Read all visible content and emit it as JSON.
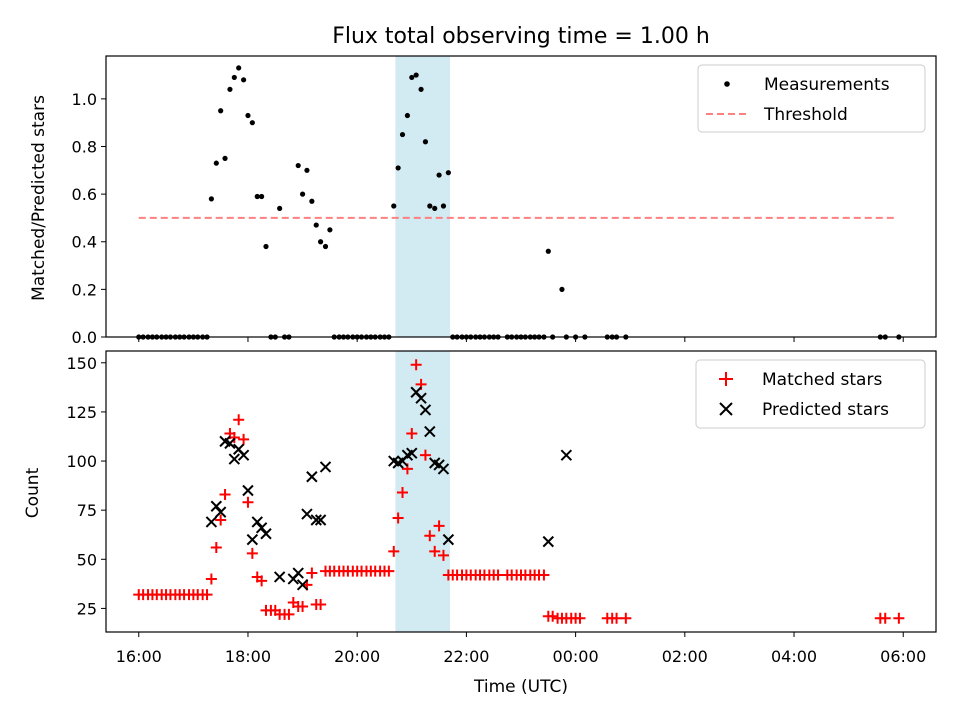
{
  "figure": {
    "title": "Flux total observing time = 1.00 h"
  },
  "chart_data": [
    {
      "type": "scatter",
      "ylabel": "Matched/Predicted stars",
      "xlim": [
        15.4,
        30.6
      ],
      "ylim": [
        0,
        1.18
      ],
      "ytick_values": [
        0.0,
        0.2,
        0.4,
        0.6,
        0.8,
        1.0
      ],
      "ytick_labels": [
        "0.0",
        "0.2",
        "0.4",
        "0.6",
        "0.8",
        "1.0"
      ],
      "shaded_span": [
        20.7,
        21.7
      ],
      "threshold": {
        "name": "Threshold",
        "value": 0.5,
        "x_range": [
          16.0,
          29.9
        ],
        "color": "#ff8080"
      },
      "series": [
        {
          "name": "Measurements",
          "color": "#000000",
          "points": [
            [
              16.0,
              0
            ],
            [
              16.08,
              0
            ],
            [
              16.17,
              0
            ],
            [
              16.25,
              0
            ],
            [
              16.33,
              0
            ],
            [
              16.42,
              0
            ],
            [
              16.5,
              0
            ],
            [
              16.58,
              0
            ],
            [
              16.67,
              0
            ],
            [
              16.75,
              0
            ],
            [
              16.83,
              0
            ],
            [
              16.92,
              0
            ],
            [
              17.0,
              0
            ],
            [
              17.08,
              0
            ],
            [
              17.17,
              0
            ],
            [
              17.25,
              0
            ],
            [
              17.33,
              0.58
            ],
            [
              17.42,
              0.73
            ],
            [
              17.5,
              0.95
            ],
            [
              17.58,
              0.75
            ],
            [
              17.67,
              1.04
            ],
            [
              17.75,
              1.09
            ],
            [
              17.83,
              1.13
            ],
            [
              17.92,
              1.08
            ],
            [
              18.0,
              0.93
            ],
            [
              18.08,
              0.9
            ],
            [
              18.17,
              0.59
            ],
            [
              18.25,
              0.59
            ],
            [
              18.33,
              0.38
            ],
            [
              18.42,
              0
            ],
            [
              18.5,
              0
            ],
            [
              18.58,
              0.54
            ],
            [
              18.67,
              0
            ],
            [
              18.75,
              0
            ],
            [
              18.92,
              0.72
            ],
            [
              19.0,
              0.6
            ],
            [
              19.08,
              0.7
            ],
            [
              19.17,
              0.57
            ],
            [
              19.25,
              0.47
            ],
            [
              19.33,
              0.4
            ],
            [
              19.42,
              0.38
            ],
            [
              19.5,
              0.45
            ],
            [
              19.58,
              0
            ],
            [
              19.67,
              0
            ],
            [
              19.75,
              0
            ],
            [
              19.83,
              0
            ],
            [
              19.92,
              0
            ],
            [
              20.0,
              0
            ],
            [
              20.08,
              0
            ],
            [
              20.17,
              0
            ],
            [
              20.25,
              0
            ],
            [
              20.33,
              0
            ],
            [
              20.42,
              0
            ],
            [
              20.5,
              0
            ],
            [
              20.58,
              0
            ],
            [
              20.67,
              0.55
            ],
            [
              20.75,
              0.71
            ],
            [
              20.83,
              0.85
            ],
            [
              20.92,
              0.93
            ],
            [
              21.0,
              1.09
            ],
            [
              21.08,
              1.1
            ],
            [
              21.17,
              1.04
            ],
            [
              21.25,
              0.82
            ],
            [
              21.33,
              0.55
            ],
            [
              21.42,
              0.54
            ],
            [
              21.5,
              0.68
            ],
            [
              21.58,
              0.55
            ],
            [
              21.67,
              0.69
            ],
            [
              21.75,
              0
            ],
            [
              21.83,
              0
            ],
            [
              21.92,
              0
            ],
            [
              22.0,
              0
            ],
            [
              22.08,
              0
            ],
            [
              22.17,
              0
            ],
            [
              22.25,
              0
            ],
            [
              22.33,
              0
            ],
            [
              22.42,
              0
            ],
            [
              22.5,
              0
            ],
            [
              22.58,
              0
            ],
            [
              22.75,
              0
            ],
            [
              22.83,
              0
            ],
            [
              22.92,
              0
            ],
            [
              23.0,
              0
            ],
            [
              23.08,
              0
            ],
            [
              23.17,
              0
            ],
            [
              23.25,
              0
            ],
            [
              23.33,
              0
            ],
            [
              23.42,
              0
            ],
            [
              23.5,
              0.36
            ],
            [
              23.58,
              0
            ],
            [
              23.75,
              0.2
            ],
            [
              23.83,
              0
            ],
            [
              24.0,
              0
            ],
            [
              24.17,
              0
            ],
            [
              24.58,
              0
            ],
            [
              24.67,
              0
            ],
            [
              24.75,
              0
            ],
            [
              24.92,
              0
            ],
            [
              29.58,
              0
            ],
            [
              29.67,
              0
            ],
            [
              29.92,
              0
            ]
          ]
        }
      ],
      "legend": {
        "position": "upper right",
        "entries": [
          "Measurements",
          "Threshold"
        ]
      }
    },
    {
      "type": "scatter",
      "xlabel": "Time (UTC)",
      "ylabel": "Count",
      "xlim": [
        15.4,
        30.6
      ],
      "ylim": [
        13,
        156
      ],
      "xtick_values": [
        16,
        18,
        20,
        22,
        24,
        26,
        28,
        30
      ],
      "xtick_labels": [
        "16:00",
        "18:00",
        "20:00",
        "22:00",
        "00:00",
        "02:00",
        "04:00",
        "06:00"
      ],
      "ytick_values": [
        25,
        50,
        75,
        100,
        125,
        150
      ],
      "ytick_labels": [
        "25",
        "50",
        "75",
        "100",
        "125",
        "150"
      ],
      "shaded_span": [
        20.7,
        21.7
      ],
      "series": [
        {
          "name": "Matched stars",
          "marker": "plus",
          "color": "#ff0000",
          "points": [
            [
              16.0,
              32
            ],
            [
              16.08,
              32
            ],
            [
              16.17,
              32
            ],
            [
              16.25,
              32
            ],
            [
              16.33,
              32
            ],
            [
              16.42,
              32
            ],
            [
              16.5,
              32
            ],
            [
              16.58,
              32
            ],
            [
              16.67,
              32
            ],
            [
              16.75,
              32
            ],
            [
              16.83,
              32
            ],
            [
              16.92,
              32
            ],
            [
              17.0,
              32
            ],
            [
              17.08,
              32
            ],
            [
              17.17,
              32
            ],
            [
              17.25,
              32
            ],
            [
              17.33,
              40
            ],
            [
              17.42,
              56
            ],
            [
              17.5,
              70
            ],
            [
              17.58,
              83
            ],
            [
              17.67,
              114
            ],
            [
              17.75,
              112
            ],
            [
              17.83,
              121
            ],
            [
              17.92,
              111
            ],
            [
              18.0,
              79
            ],
            [
              18.08,
              53
            ],
            [
              18.17,
              41
            ],
            [
              18.25,
              39
            ],
            [
              18.33,
              24
            ],
            [
              18.42,
              24
            ],
            [
              18.5,
              24
            ],
            [
              18.58,
              22
            ],
            [
              18.67,
              22
            ],
            [
              18.75,
              22
            ],
            [
              18.83,
              28
            ],
            [
              18.92,
              26
            ],
            [
              19.0,
              26
            ],
            [
              19.08,
              37
            ],
            [
              19.17,
              43
            ],
            [
              19.25,
              27
            ],
            [
              19.33,
              27
            ],
            [
              19.42,
              44
            ],
            [
              19.5,
              44
            ],
            [
              19.58,
              44
            ],
            [
              19.67,
              44
            ],
            [
              19.75,
              44
            ],
            [
              19.83,
              44
            ],
            [
              19.92,
              44
            ],
            [
              20.0,
              44
            ],
            [
              20.08,
              44
            ],
            [
              20.17,
              44
            ],
            [
              20.25,
              44
            ],
            [
              20.33,
              44
            ],
            [
              20.42,
              44
            ],
            [
              20.5,
              44
            ],
            [
              20.58,
              44
            ],
            [
              20.67,
              54
            ],
            [
              20.75,
              71
            ],
            [
              20.83,
              84
            ],
            [
              20.92,
              96
            ],
            [
              21.0,
              114
            ],
            [
              21.08,
              149
            ],
            [
              21.17,
              139
            ],
            [
              21.25,
              103
            ],
            [
              21.33,
              62
            ],
            [
              21.42,
              54
            ],
            [
              21.5,
              67
            ],
            [
              21.58,
              52
            ],
            [
              21.67,
              42
            ],
            [
              21.75,
              42
            ],
            [
              21.83,
              42
            ],
            [
              21.92,
              42
            ],
            [
              22.0,
              42
            ],
            [
              22.08,
              42
            ],
            [
              22.17,
              42
            ],
            [
              22.25,
              42
            ],
            [
              22.33,
              42
            ],
            [
              22.42,
              42
            ],
            [
              22.5,
              42
            ],
            [
              22.58,
              42
            ],
            [
              22.75,
              42
            ],
            [
              22.83,
              42
            ],
            [
              22.92,
              42
            ],
            [
              23.0,
              42
            ],
            [
              23.08,
              42
            ],
            [
              23.17,
              42
            ],
            [
              23.25,
              42
            ],
            [
              23.33,
              42
            ],
            [
              23.42,
              42
            ],
            [
              23.5,
              21
            ],
            [
              23.58,
              21
            ],
            [
              23.67,
              20
            ],
            [
              23.75,
              20
            ],
            [
              23.83,
              20
            ],
            [
              23.92,
              20
            ],
            [
              24.0,
              20
            ],
            [
              24.08,
              20
            ],
            [
              24.58,
              20
            ],
            [
              24.67,
              20
            ],
            [
              24.75,
              20
            ],
            [
              24.92,
              20
            ],
            [
              29.58,
              20
            ],
            [
              29.67,
              20
            ],
            [
              29.92,
              20
            ]
          ]
        },
        {
          "name": "Predicted stars",
          "marker": "x",
          "color": "#000000",
          "points": [
            [
              17.33,
              69
            ],
            [
              17.42,
              77
            ],
            [
              17.5,
              74
            ],
            [
              17.58,
              110
            ],
            [
              17.67,
              109
            ],
            [
              17.75,
              101
            ],
            [
              17.83,
              106
            ],
            [
              17.92,
              103
            ],
            [
              18.0,
              85
            ],
            [
              18.08,
              60
            ],
            [
              18.17,
              69
            ],
            [
              18.25,
              66
            ],
            [
              18.33,
              63
            ],
            [
              18.58,
              41
            ],
            [
              18.83,
              40
            ],
            [
              18.92,
              43
            ],
            [
              19.0,
              37
            ],
            [
              19.08,
              73
            ],
            [
              19.17,
              92
            ],
            [
              19.25,
              70
            ],
            [
              19.33,
              70
            ],
            [
              19.42,
              97
            ],
            [
              20.67,
              100
            ],
            [
              20.75,
              99
            ],
            [
              20.83,
              100
            ],
            [
              20.92,
              103
            ],
            [
              21.0,
              104
            ],
            [
              21.08,
              135
            ],
            [
              21.17,
              132
            ],
            [
              21.25,
              126
            ],
            [
              21.33,
              115
            ],
            [
              21.42,
              99
            ],
            [
              21.5,
              98
            ],
            [
              21.58,
              96
            ],
            [
              21.67,
              60
            ],
            [
              23.5,
              59
            ],
            [
              23.83,
              103
            ]
          ]
        }
      ],
      "legend": {
        "position": "upper right",
        "entries": [
          "Matched stars",
          "Predicted stars"
        ]
      }
    }
  ]
}
